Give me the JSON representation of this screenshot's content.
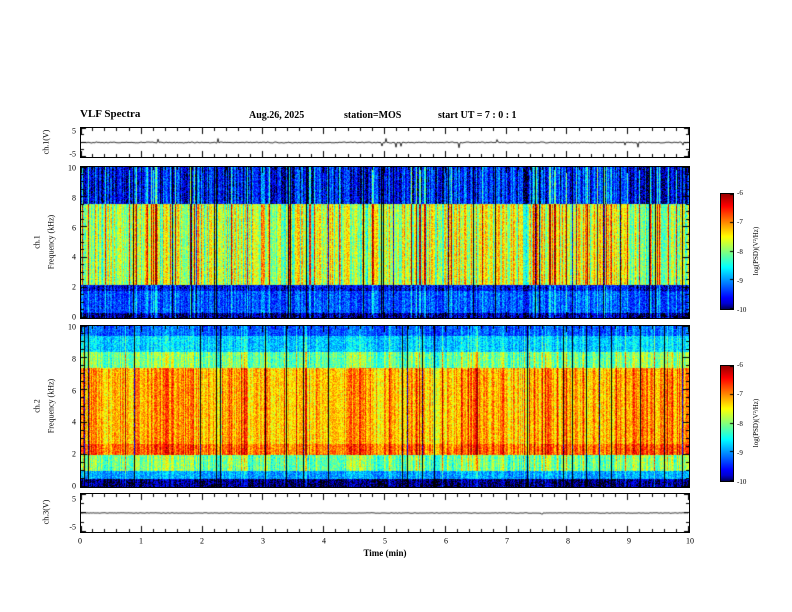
{
  "header": {
    "title": "VLF Spectra",
    "date": "Aug.26, 2025",
    "station": "station=MOS",
    "start_ut": "start UT =  7 : 0 : 1"
  },
  "panels": {
    "ch1_wave_label": "ch.1(V)",
    "ch1_channel": "ch.1",
    "ch2_channel": "ch.2",
    "freq_axis_label": "Frequency (kHz)",
    "ch3_wave_label": "ch.3(V)"
  },
  "axes": {
    "time_label": "Time (min)",
    "x_ticks": [
      "0",
      "1",
      "2",
      "3",
      "4",
      "5",
      "6",
      "7",
      "8",
      "9",
      "10"
    ],
    "freq_ticks": [
      "10",
      "8",
      "6",
      "4",
      "2",
      "0"
    ],
    "volt_ticks": [
      "5",
      "-5"
    ],
    "colorbar_ticks": [
      "-6",
      "-7",
      "-8",
      "-9",
      "-10"
    ],
    "colorbar_label": "log(PSD)(V²/Hz)"
  },
  "chart_data": {
    "type": "heatmap",
    "title": "VLF Spectra",
    "subtitle": "Aug.26, 2025  station=MOS  start UT = 7:0:1",
    "xlabel": "Time (min)",
    "x_range": [
      0,
      10
    ],
    "x_ticks": [
      0,
      1,
      2,
      3,
      4,
      5,
      6,
      7,
      8,
      9,
      10
    ],
    "colormap": "jet",
    "panels": [
      {
        "name": "ch.1 voltage",
        "type": "line",
        "ylabel": "ch.1(V)",
        "ylim": [
          -5,
          5
        ],
        "y_ticks": [
          5,
          -5
        ],
        "description": "near-zero flat voltage trace with sparse small impulsive spikes"
      },
      {
        "name": "ch.1 spectrogram",
        "type": "heatmap",
        "ylabel": "ch.1 Frequency (kHz)",
        "ylim": [
          0,
          10
        ],
        "y_ticks": [
          10,
          8,
          6,
          4,
          2,
          0
        ],
        "zlabel": "log(PSD)(V²/Hz)",
        "zlim": [
          -10,
          -6
        ],
        "bands": [
          {
            "f": [
              0,
              0.35
            ],
            "level": -9.75
          },
          {
            "f": [
              0.35,
              1.8
            ],
            "level": -9.2
          },
          {
            "f": [
              1.8,
              2.25
            ],
            "level": -9.55
          },
          {
            "f": [
              2.25,
              7.6
            ],
            "level": -7.75
          },
          {
            "f": [
              7.6,
              10
            ],
            "level": -9.45
          }
        ],
        "features": "dense vertical broadband striations 2-8 kHz (green/yellow) with frequent red streaks near -6.5 and dark dropout columns; dark blue/black above 8 kHz and below 2 kHz"
      },
      {
        "name": "ch.2 spectrogram",
        "type": "heatmap",
        "ylabel": "ch.2 Frequency (kHz)",
        "ylim": [
          0,
          10
        ],
        "y_ticks": [
          10,
          8,
          6,
          4,
          2,
          0
        ],
        "zlabel": "log(PSD)(V²/Hz)",
        "zlim": [
          -10,
          -6
        ],
        "bands": [
          {
            "f": [
              0,
              0.55
            ],
            "level": -9.8
          },
          {
            "f": [
              0.55,
              1.05
            ],
            "level": -8.85
          },
          {
            "f": [
              1.05,
              2.0
            ],
            "level": -8.0
          },
          {
            "f": [
              2.0,
              2.7
            ],
            "level": -6.85
          },
          {
            "f": [
              2.7,
              7.4
            ],
            "level": -7.15
          },
          {
            "f": [
              7.4,
              8.4
            ],
            "level": -8.0
          },
          {
            "f": [
              8.4,
              9.4
            ],
            "level": -8.65
          },
          {
            "f": [
              9.4,
              10
            ],
            "level": -9.1
          }
        ],
        "features": "intense red/orange band 2-7.5 kHz with yellow speckle; narrow black dropout columns; green 1-2 and 7.5-8.5 kHz; blue above 8.5 kHz; black below 0.5 kHz"
      },
      {
        "name": "ch.3 voltage",
        "type": "line",
        "ylabel": "ch.3(V)",
        "ylim": [
          -5,
          5
        ],
        "y_ticks": [
          5,
          -5
        ],
        "description": "flat trace at approximately 0 V"
      }
    ]
  },
  "render": {
    "spec1": {
      "seed": 1234567,
      "darkProb": 0.055,
      "darkAmp": 0.42,
      "brightProb": 0.075,
      "brightAmp": 0.28,
      "modAmp": 0.34,
      "noise": 0.18,
      "lowRespBelow": 2.25,
      "lowResp": 0.45,
      "topRespAbove": 7.6,
      "topResp": 0.8
    },
    "spec2": {
      "seed": 7654321,
      "darkProb": 0.042,
      "darkAmp": 0.6,
      "brightProb": 0.06,
      "brightAmp": 0.12,
      "modAmp": 0.18,
      "noise": 0.16,
      "lowRespBelow": 1.0,
      "lowResp": 0.5,
      "topRespAbove": 8.4,
      "topResp": 0.6
    },
    "wave1": {
      "seed": 777,
      "noise": 0.55,
      "spikeProb": 0.02,
      "spikeAmp": 6
    },
    "wave3": {
      "seed": 999,
      "noise": 0.3,
      "spikeProb": 0.004,
      "spikeAmp": 2.5
    }
  }
}
